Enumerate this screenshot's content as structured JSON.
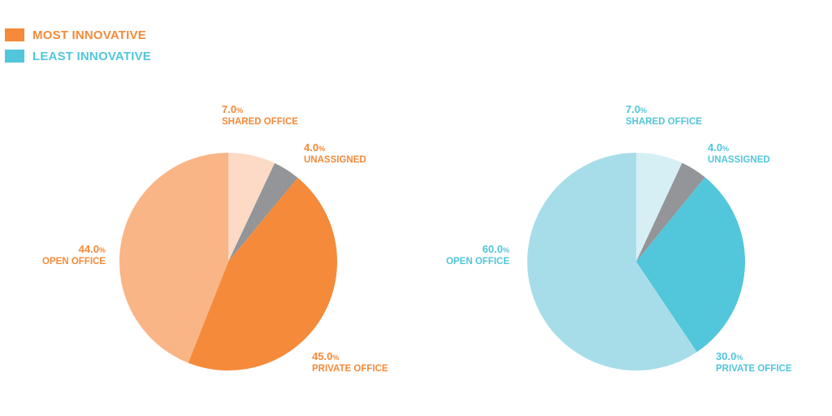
{
  "legend": [
    {
      "label": "MOST INNOVATIVE",
      "color": "#f58a3a"
    },
    {
      "label": "LEAST INNOVATIVE",
      "color": "#52c6db"
    }
  ],
  "chart_data": [
    {
      "type": "pie",
      "title": "",
      "series_name": "MOST INNOVATIVE",
      "text_color": "#f58a3a",
      "start_angle_deg": 0,
      "slices": [
        {
          "name": "SHARED OFFICE",
          "value": 7.0,
          "display": "7.0",
          "unit": "%",
          "color": "#fddac5"
        },
        {
          "name": "UNASSIGNED",
          "value": 4.0,
          "display": "4.0",
          "unit": "%",
          "color": "#939598"
        },
        {
          "name": "PRIVATE OFFICE",
          "value": 45.0,
          "display": "45.0",
          "unit": "%",
          "color": "#f58a3a"
        },
        {
          "name": "OPEN OFFICE",
          "value": 44.0,
          "display": "44.0",
          "unit": "%",
          "color": "#f9b586"
        }
      ]
    },
    {
      "type": "pie",
      "title": "",
      "series_name": "LEAST INNOVATIVE",
      "text_color": "#52c6db",
      "start_angle_deg": 0,
      "slices": [
        {
          "name": "SHARED OFFICE",
          "value": 7.0,
          "display": "7.0",
          "unit": "%",
          "color": "#d5eff5"
        },
        {
          "name": "UNASSIGNED",
          "value": 4.0,
          "display": "4.0",
          "unit": "%",
          "color": "#939598"
        },
        {
          "name": "PRIVATE OFFICE",
          "value": 30.0,
          "display": "30.0",
          "unit": "%",
          "color": "#52c6db"
        },
        {
          "name": "OPEN OFFICE",
          "value": 60.0,
          "display": "60.0",
          "unit": "%",
          "color": "#a6dde9"
        }
      ]
    }
  ]
}
